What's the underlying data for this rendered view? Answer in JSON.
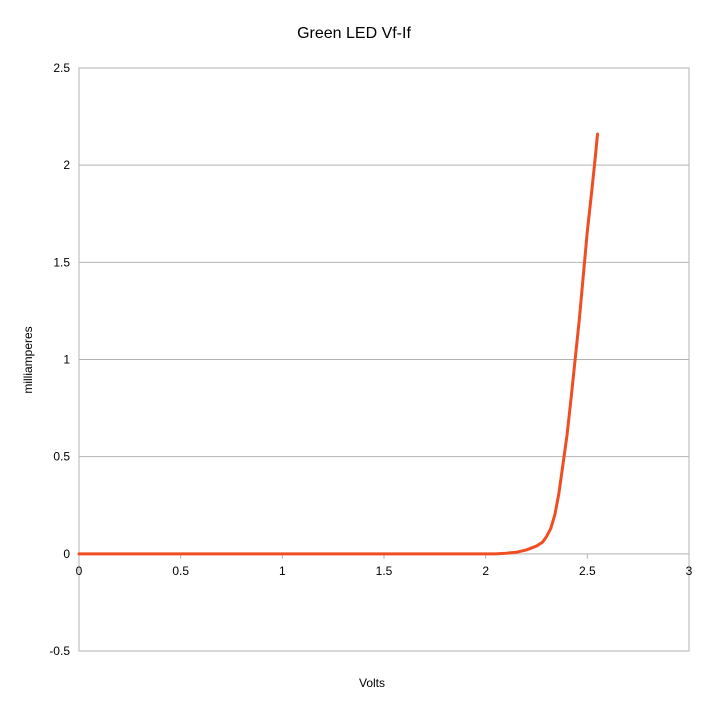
{
  "chart_data": {
    "type": "line",
    "title": "Green LED Vf-If",
    "xlabel": "Volts",
    "ylabel": "milliamperes",
    "xlim": [
      0,
      3
    ],
    "ylim": [
      -0.5,
      2.5
    ],
    "x_ticks": [
      "0",
      "0.5",
      "1",
      "1.5",
      "2",
      "2.5",
      "3"
    ],
    "y_ticks": [
      "-0.5",
      "0",
      "0.5",
      "1",
      "1.5",
      "2",
      "2.5"
    ],
    "grid": "horizontal",
    "legend": "none",
    "series": [
      {
        "color": "#f04e22",
        "points": [
          [
            0,
            0
          ],
          [
            0.5,
            0
          ],
          [
            1.0,
            0
          ],
          [
            1.5,
            0
          ],
          [
            2.0,
            0
          ],
          [
            2.05,
            0.0
          ],
          [
            2.1,
            0.003
          ],
          [
            2.15,
            0.008
          ],
          [
            2.2,
            0.02
          ],
          [
            2.25,
            0.04
          ],
          [
            2.28,
            0.06
          ],
          [
            2.3,
            0.09
          ],
          [
            2.32,
            0.13
          ],
          [
            2.34,
            0.2
          ],
          [
            2.36,
            0.31
          ],
          [
            2.38,
            0.46
          ],
          [
            2.4,
            0.61
          ],
          [
            2.42,
            0.8
          ],
          [
            2.44,
            1.0
          ],
          [
            2.46,
            1.2
          ],
          [
            2.48,
            1.43
          ],
          [
            2.5,
            1.66
          ],
          [
            2.52,
            1.85
          ],
          [
            2.54,
            2.05
          ],
          [
            2.55,
            2.16
          ]
        ]
      }
    ]
  }
}
